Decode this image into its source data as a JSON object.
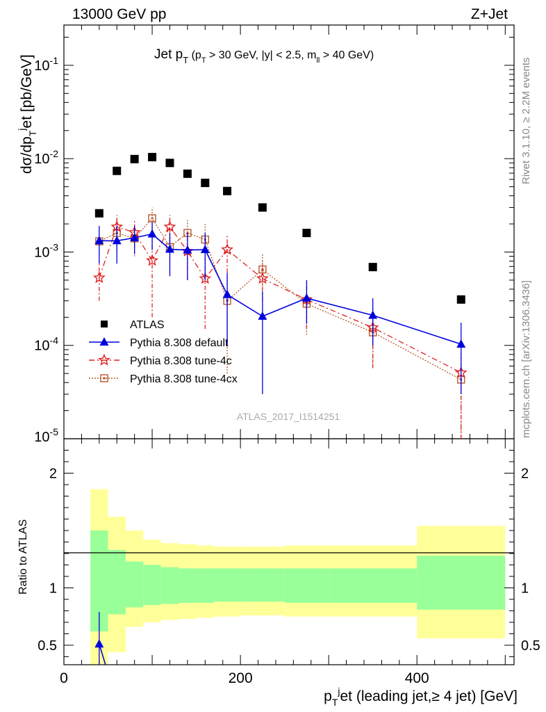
{
  "header": {
    "left": "13000 GeV pp",
    "right": "Z+Jet"
  },
  "side_text": {
    "rivet": "Rivet 3.1.10, ≥ 2.2M events",
    "mcplots": "mcplots.cern.ch [arXiv:1306.3436]"
  },
  "watermark": "ATLAS_2017_I1514251",
  "chart_data": [
    {
      "type": "line",
      "panel": "main",
      "title": "Jet p_T (p_T > 30 GeV, |y| < 2.5, m_ll > 40 GeV)",
      "ylabel": "dσ/dp_T^jet [pb/GeV]",
      "xlim": [
        0,
        510
      ],
      "ylim": [
        1e-05,
        0.27
      ],
      "yscale": "log",
      "y_ticklabels": [
        "10^-5",
        "10^-4",
        "10^-3",
        "10^-2",
        "10^-1"
      ],
      "legend_position": "lower-left",
      "series": [
        {
          "name": "ATLAS",
          "color": "#000000",
          "marker": "square",
          "line": "none",
          "x": [
            40,
            60,
            80,
            100,
            120,
            140,
            160,
            185,
            225,
            275,
            350,
            450
          ],
          "y": [
            0.0026,
            0.0074,
            0.0099,
            0.0104,
            0.009,
            0.0069,
            0.0055,
            0.0045,
            0.003,
            0.0016,
            0.00069,
            0.00031
          ]
        },
        {
          "name": "Pythia 8.308 default",
          "color": "#0000dd",
          "marker": "triangle",
          "line": "solid",
          "x": [
            40,
            60,
            80,
            100,
            120,
            140,
            160,
            185,
            225,
            275,
            350,
            450
          ],
          "y": [
            0.00132,
            0.00132,
            0.00142,
            0.00156,
            0.00107,
            0.00105,
            0.00106,
            0.00035,
            0.000205,
            0.00032,
            0.00021,
            0.000103
          ],
          "y_lo": [
            0.00075,
            0.00075,
            0.00095,
            0.00105,
            0.00055,
            0.0005,
            0.0005,
            0.0001,
            3e-05,
            0.00017,
            0.0001,
            3e-05
          ],
          "y_hi": [
            0.0019,
            0.0019,
            0.0019,
            0.0021,
            0.0016,
            0.0016,
            0.0016,
            0.0006,
            0.00038,
            0.0005,
            0.00032,
            0.000175
          ]
        },
        {
          "name": "Pythia 8.308 tune-4c",
          "color": "#dd2222",
          "marker": "star",
          "line": "dashdot",
          "x": [
            40,
            60,
            80,
            100,
            120,
            140,
            160,
            185,
            225,
            275,
            350,
            450
          ],
          "y": [
            0.00053,
            0.00186,
            0.00162,
            0.00081,
            0.00186,
            0.00102,
            0.00052,
            0.00106,
            0.00052,
            0.00031,
            0.000155,
            5.1e-05
          ],
          "y_lo": [
            0.0003,
            0.0013,
            0.0011,
            0.0002,
            0.0013,
            0.0005,
            0.00015,
            0.0006,
            0.0003,
            0.00015,
            5.7e-05,
            1e-05
          ],
          "y_hi": [
            0.0008,
            0.0025,
            0.0022,
            0.0015,
            0.0025,
            0.0015,
            0.0009,
            0.0015,
            0.0008,
            0.00047,
            0.00025,
            9e-05
          ]
        },
        {
          "name": "Pythia 8.308 tune-4cx",
          "color": "#b55a2c",
          "marker": "opensquare",
          "line": "dotted",
          "x": [
            40,
            60,
            80,
            100,
            120,
            140,
            160,
            185,
            225,
            275,
            350,
            450
          ],
          "y": [
            0.0013,
            0.0016,
            0.0014,
            0.0023,
            0.00113,
            0.0016,
            0.00136,
            0.0003,
            0.00065,
            0.00028,
            0.000138,
            4.3e-05
          ],
          "y_lo": [
            0.0009,
            0.001,
            0.0009,
            0.0015,
            0.0007,
            0.001,
            0.0008,
            5e-05,
            0.0004,
            0.00013,
            6e-05,
            1e-05
          ],
          "y_hi": [
            0.0018,
            0.0023,
            0.002,
            0.003,
            0.0017,
            0.0022,
            0.002,
            0.00055,
            0.00095,
            0.00043,
            0.00022,
            8e-05
          ]
        }
      ]
    },
    {
      "type": "area",
      "panel": "ratio",
      "xlabel": "p_T^jet (leading jet,≥ 4 jet) [GeV]",
      "ylabel": "Ratio to ATLAS",
      "xlim": [
        0,
        510
      ],
      "ylim": [
        0.33,
        2.3
      ],
      "x_ticklabels": [
        "0",
        "200",
        "400"
      ],
      "y_ticklabels": [
        "0.5",
        "1",
        "2"
      ],
      "reference": 1,
      "bins": [
        30,
        50,
        70,
        90,
        110,
        130,
        150,
        170,
        200,
        250,
        300,
        400,
        500
      ],
      "band_total_lo": [
        0.2,
        0.44,
        0.66,
        0.7,
        0.72,
        0.73,
        0.74,
        0.75,
        0.76,
        0.75,
        0.75,
        0.56
      ],
      "band_total_hi": [
        1.86,
        1.62,
        1.5,
        1.42,
        1.39,
        1.38,
        1.37,
        1.36,
        1.36,
        1.37,
        1.37,
        1.54
      ],
      "band_stat_lo": [
        0.62,
        0.77,
        0.83,
        0.85,
        0.86,
        0.87,
        0.87,
        0.88,
        0.88,
        0.87,
        0.87,
        0.81
      ],
      "band_stat_hi": [
        1.5,
        1.33,
        1.23,
        1.2,
        1.18,
        1.17,
        1.17,
        1.17,
        1.17,
        1.17,
        1.17,
        1.28
      ],
      "series": [
        {
          "name": "Pythia 8.308 default",
          "color": "#0000dd",
          "marker": "triangle",
          "x": [
            40
          ],
          "y": [
            0.51
          ],
          "y_lo": [
            0.3
          ],
          "y_hi": [
            0.79
          ]
        }
      ]
    }
  ]
}
